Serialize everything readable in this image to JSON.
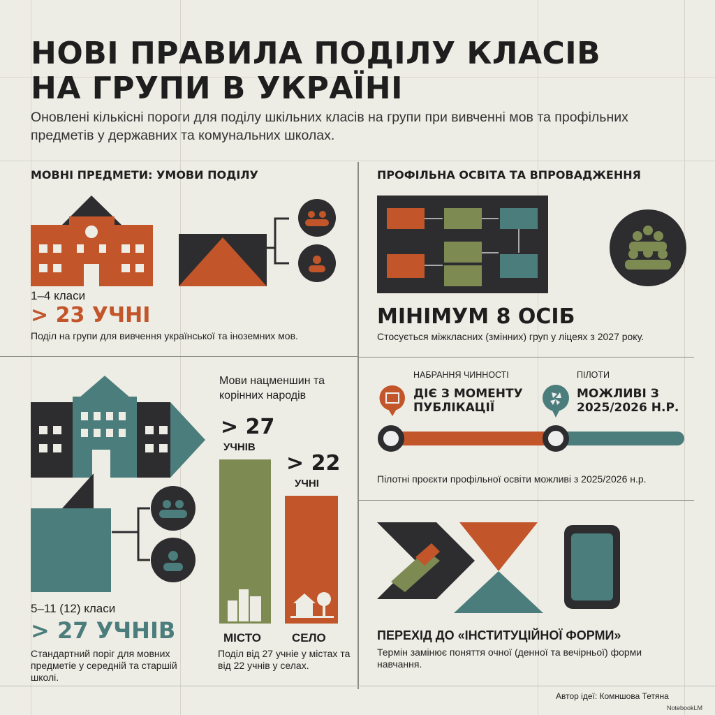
{
  "title": [
    "НОВІ ПРАВИЛА ПОДІЛУ КЛАСІВ",
    "НА ГРУПИ В УКРАЇНІ"
  ],
  "subtitle": "Оновлені кількісні пороги для поділу шкільних класів на групи при вивченні мов та профільних предметів у державних та комунальних школах.",
  "colors": {
    "orange": "#c2562a",
    "green": "#7d8a52",
    "teal": "#4b7d7c",
    "dark": "#2d2d30",
    "background": "#eeede5"
  },
  "language": {
    "heading": "МОВНІ ПРЕДМЕТИ: УМОВИ ПОДІЛУ",
    "primary": {
      "grades": "1–4 класи",
      "threshold": "> 23 УЧНІ",
      "note": "Поділ на групи для вивчення української та іноземних мов."
    },
    "secondary": {
      "grades": "5–11 (12) класи",
      "threshold": "> 27 УЧНІВ",
      "note": "Стандартний поріг для мовних предметіе у середній та старшій школі."
    },
    "minorities": {
      "heading": "Мови нацменшин та корінних народів",
      "city": {
        "value": "> 27",
        "unit": "УЧНІВ",
        "label": "МІСТО"
      },
      "village": {
        "value": "> 22",
        "unit": "УЧНІ",
        "label": "СЕЛО"
      },
      "note": "Поділ від 27 учніе у містах та від 22 учнів у селах."
    }
  },
  "profile": {
    "heading": "ПРОФІЛЬНА ОСВІТА ТА ВПРОВАДЖЕННЯ",
    "minimum": "МІНІМУМ 8 ОСІБ",
    "minimum_note": "Стосується міжкласних (змінних) груп у ліцеях з 2027 року.",
    "timeline": [
      {
        "label": "НАБРАННЯ ЧИННОСТІ",
        "value": "ДІЄ З МОМЕНТУ ПУБЛІКАЦІЇ",
        "icon": "book-icon"
      },
      {
        "label": "ПІЛОТИ",
        "value": "МОЖЛИВІ З 2025/2026 Н.Р.",
        "icon": "pinwheel-icon"
      }
    ],
    "timeline_note": "Пілотні проєкти профільної освіти можливі з 2025/2026 н.р."
  },
  "institutional": {
    "heading": "ПЕРЕХІД ДО «ІНСТИТУЦІЙНОЇ ФОРМИ»",
    "note": "Термін замінює поняття очної (денної та вечірньої) форми навчання."
  },
  "footer": {
    "author": "Автор ідеї: Комншова Тетяна",
    "watermark": "NotebookLM"
  }
}
